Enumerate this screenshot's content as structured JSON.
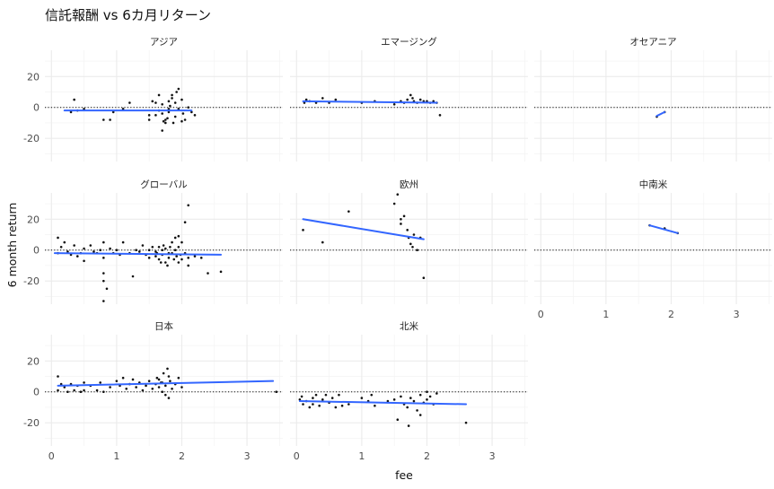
{
  "chart_data": {
    "type": "scatter",
    "title": "信託報酬 vs 6カ月リターン",
    "xlabel": "fee",
    "ylabel": "6 month return",
    "xlim": [
      -0.1,
      3.55
    ],
    "ylim": [
      -35,
      37
    ],
    "x_ticks": [
      0,
      1,
      2,
      3
    ],
    "y_ticks": [
      -20,
      0,
      20
    ],
    "grid": true,
    "reference_line": {
      "y": 0,
      "style": "dotted"
    },
    "trend": "linear fit per panel",
    "colors": {
      "points": "#111111",
      "trend": "#3366ff",
      "grid": "#ebebeb"
    },
    "panels": [
      {
        "name": "アジア",
        "trend": {
          "x0": 0.2,
          "y0": -2,
          "x1": 2.15,
          "y1": -2
        },
        "points": [
          [
            0.3,
            -3
          ],
          [
            0.35,
            5
          ],
          [
            0.4,
            -2
          ],
          [
            0.5,
            -1
          ],
          [
            0.8,
            -8
          ],
          [
            0.9,
            -8
          ],
          [
            0.95,
            -3
          ],
          [
            1.1,
            -1
          ],
          [
            1.2,
            3
          ],
          [
            1.5,
            -5
          ],
          [
            1.5,
            -8
          ],
          [
            1.55,
            4
          ],
          [
            1.6,
            -5
          ],
          [
            1.65,
            8
          ],
          [
            1.7,
            2
          ],
          [
            1.7,
            -15
          ],
          [
            1.72,
            -9
          ],
          [
            1.75,
            -10
          ],
          [
            1.78,
            -7
          ],
          [
            1.8,
            4
          ],
          [
            1.8,
            -3
          ],
          [
            1.82,
            1
          ],
          [
            1.85,
            6
          ],
          [
            1.85,
            8
          ],
          [
            1.87,
            -10
          ],
          [
            1.9,
            -6
          ],
          [
            1.92,
            10
          ],
          [
            1.95,
            -1
          ],
          [
            1.95,
            12
          ],
          [
            2.0,
            -9
          ],
          [
            2.0,
            5
          ],
          [
            2.02,
            -4
          ],
          [
            2.05,
            -8
          ],
          [
            2.1,
            0
          ],
          [
            2.15,
            -3
          ],
          [
            2.2,
            -5
          ],
          [
            1.6,
            3
          ],
          [
            1.65,
            -2
          ],
          [
            1.7,
            -4
          ],
          [
            1.75,
            -8
          ],
          [
            1.8,
            -1
          ],
          [
            1.9,
            3
          ]
        ]
      },
      {
        "name": "エマージング",
        "trend": {
          "x0": 0.1,
          "y0": 4,
          "x1": 2.15,
          "y1": 3
        },
        "points": [
          [
            0.12,
            3
          ],
          [
            0.15,
            5
          ],
          [
            0.2,
            4
          ],
          [
            0.3,
            3
          ],
          [
            0.4,
            6
          ],
          [
            0.5,
            3
          ],
          [
            0.6,
            5
          ],
          [
            1.0,
            3
          ],
          [
            1.2,
            4
          ],
          [
            1.5,
            2
          ],
          [
            1.6,
            4
          ],
          [
            1.65,
            3
          ],
          [
            1.7,
            5
          ],
          [
            1.75,
            8
          ],
          [
            1.8,
            4
          ],
          [
            1.85,
            3
          ],
          [
            1.9,
            5
          ],
          [
            1.95,
            4
          ],
          [
            2.0,
            4
          ],
          [
            2.05,
            3
          ],
          [
            2.1,
            4
          ],
          [
            2.2,
            -5
          ],
          [
            2.15,
            3
          ],
          [
            1.78,
            6
          ]
        ]
      },
      {
        "name": "オセアニア",
        "trend": {
          "x0": 1.78,
          "y0": -5.5,
          "x1": 1.9,
          "y1": -3
        },
        "points": [
          [
            1.78,
            -6
          ],
          [
            1.9,
            -3
          ]
        ]
      },
      {
        "name": "グローバル",
        "trend": {
          "x0": 0.05,
          "y0": -2,
          "x1": 2.6,
          "y1": -3
        },
        "points": [
          [
            0.1,
            -2
          ],
          [
            0.1,
            8
          ],
          [
            0.15,
            2
          ],
          [
            0.2,
            5
          ],
          [
            0.25,
            -1
          ],
          [
            0.3,
            -3
          ],
          [
            0.35,
            3
          ],
          [
            0.4,
            -4
          ],
          [
            0.45,
            -2
          ],
          [
            0.5,
            1
          ],
          [
            0.5,
            -7
          ],
          [
            0.6,
            3
          ],
          [
            0.65,
            -1
          ],
          [
            0.7,
            -2
          ],
          [
            0.75,
            0
          ],
          [
            0.8,
            5
          ],
          [
            0.8,
            -5
          ],
          [
            0.8,
            -15
          ],
          [
            0.8,
            -20
          ],
          [
            0.8,
            -33
          ],
          [
            0.85,
            -25
          ],
          [
            0.9,
            1
          ],
          [
            0.95,
            -2
          ],
          [
            1.0,
            0
          ],
          [
            1.05,
            -3
          ],
          [
            1.1,
            5
          ],
          [
            1.2,
            -2
          ],
          [
            1.25,
            -17
          ],
          [
            1.3,
            0
          ],
          [
            1.35,
            -1
          ],
          [
            1.4,
            3
          ],
          [
            1.45,
            -3
          ],
          [
            1.5,
            0
          ],
          [
            1.5,
            -5
          ],
          [
            1.55,
            2
          ],
          [
            1.6,
            -4
          ],
          [
            1.62,
            -2
          ],
          [
            1.65,
            -6
          ],
          [
            1.68,
            -8
          ],
          [
            1.7,
            0
          ],
          [
            1.72,
            3
          ],
          [
            1.75,
            -8
          ],
          [
            1.78,
            -10
          ],
          [
            1.8,
            -5
          ],
          [
            1.82,
            2
          ],
          [
            1.85,
            5
          ],
          [
            1.85,
            -2
          ],
          [
            1.88,
            -6
          ],
          [
            1.9,
            8
          ],
          [
            1.9,
            0
          ],
          [
            1.92,
            -4
          ],
          [
            1.95,
            -8
          ],
          [
            1.95,
            2
          ],
          [
            1.98,
            -3
          ],
          [
            2.0,
            -6
          ],
          [
            2.0,
            5
          ],
          [
            2.05,
            -2
          ],
          [
            2.1,
            -5
          ],
          [
            2.1,
            -10
          ],
          [
            2.2,
            -4
          ],
          [
            2.3,
            -5
          ],
          [
            2.4,
            -15
          ],
          [
            2.6,
            -14
          ],
          [
            2.1,
            29
          ],
          [
            2.05,
            18
          ],
          [
            1.95,
            9
          ],
          [
            1.7,
            -3
          ],
          [
            1.75,
            1
          ],
          [
            1.8,
            -2
          ],
          [
            1.6,
            -1
          ],
          [
            1.65,
            2
          ]
        ]
      },
      {
        "name": "欧州",
        "trend": {
          "x0": 0.1,
          "y0": 20,
          "x1": 1.95,
          "y1": 7
        },
        "points": [
          [
            0.1,
            13
          ],
          [
            0.4,
            5
          ],
          [
            0.8,
            25
          ],
          [
            1.5,
            30
          ],
          [
            1.55,
            36
          ],
          [
            1.6,
            20
          ],
          [
            1.65,
            22
          ],
          [
            1.7,
            13
          ],
          [
            1.72,
            8
          ],
          [
            1.75,
            4
          ],
          [
            1.78,
            2
          ],
          [
            1.8,
            10
          ],
          [
            1.85,
            0
          ],
          [
            1.9,
            8
          ],
          [
            1.95,
            -18
          ],
          [
            1.6,
            17
          ]
        ]
      },
      {
        "name": "中南米",
        "trend": {
          "x0": 1.67,
          "y0": 16,
          "x1": 2.1,
          "y1": 11
        },
        "points": [
          [
            1.67,
            16
          ],
          [
            1.9,
            14
          ],
          [
            2.1,
            11
          ]
        ]
      },
      {
        "name": "日本",
        "trend": {
          "x0": 0.1,
          "y0": 4,
          "x1": 3.4,
          "y1": 7
        },
        "points": [
          [
            0.1,
            10
          ],
          [
            0.1,
            1
          ],
          [
            0.15,
            5
          ],
          [
            0.2,
            3
          ],
          [
            0.25,
            0
          ],
          [
            0.3,
            5
          ],
          [
            0.35,
            1
          ],
          [
            0.4,
            4
          ],
          [
            0.45,
            0
          ],
          [
            0.5,
            6
          ],
          [
            0.5,
            1
          ],
          [
            0.6,
            4
          ],
          [
            0.7,
            1
          ],
          [
            0.75,
            6
          ],
          [
            0.8,
            0
          ],
          [
            0.9,
            3
          ],
          [
            1.0,
            7
          ],
          [
            1.05,
            4
          ],
          [
            1.1,
            9
          ],
          [
            1.15,
            2
          ],
          [
            1.2,
            5
          ],
          [
            1.25,
            8
          ],
          [
            1.3,
            3
          ],
          [
            1.35,
            6
          ],
          [
            1.4,
            1
          ],
          [
            1.45,
            4
          ],
          [
            1.5,
            7
          ],
          [
            1.55,
            2
          ],
          [
            1.6,
            5
          ],
          [
            1.62,
            9
          ],
          [
            1.65,
            3
          ],
          [
            1.68,
            6
          ],
          [
            1.7,
            0
          ],
          [
            1.72,
            12
          ],
          [
            1.75,
            4
          ],
          [
            1.78,
            15
          ],
          [
            1.8,
            -4
          ],
          [
            1.82,
            7
          ],
          [
            1.85,
            2
          ],
          [
            1.9,
            5
          ],
          [
            1.95,
            9
          ],
          [
            2.0,
            3
          ],
          [
            1.7,
            6
          ],
          [
            1.75,
            -2
          ],
          [
            1.8,
            10
          ],
          [
            1.65,
            8
          ],
          [
            3.45,
            0
          ]
        ]
      },
      {
        "name": "北米",
        "trend": {
          "x0": 0.05,
          "y0": -6,
          "x1": 2.6,
          "y1": -8
        },
        "points": [
          [
            0.05,
            -5
          ],
          [
            0.08,
            -3
          ],
          [
            0.1,
            -8
          ],
          [
            0.15,
            -6
          ],
          [
            0.2,
            -10
          ],
          [
            0.25,
            -4
          ],
          [
            0.3,
            -2
          ],
          [
            0.35,
            -9
          ],
          [
            0.4,
            -5
          ],
          [
            0.45,
            -2
          ],
          [
            0.5,
            -7
          ],
          [
            0.55,
            -4
          ],
          [
            0.6,
            -10
          ],
          [
            0.65,
            -2
          ],
          [
            0.7,
            -9
          ],
          [
            1.0,
            -4
          ],
          [
            1.1,
            -6
          ],
          [
            1.15,
            -2
          ],
          [
            1.2,
            -9
          ],
          [
            1.5,
            -5
          ],
          [
            1.55,
            -18
          ],
          [
            1.6,
            -3
          ],
          [
            1.65,
            -8
          ],
          [
            1.7,
            -10
          ],
          [
            1.75,
            -4
          ],
          [
            1.8,
            -6
          ],
          [
            1.85,
            -12
          ],
          [
            1.9,
            -2
          ],
          [
            1.95,
            -7
          ],
          [
            2.0,
            -5
          ],
          [
            2.05,
            -3
          ],
          [
            2.1,
            -8
          ],
          [
            2.15,
            -1
          ],
          [
            2.6,
            -20
          ],
          [
            0.25,
            -8
          ],
          [
            0.8,
            -8
          ],
          [
            1.72,
            -22
          ],
          [
            1.9,
            -15
          ],
          [
            2.0,
            0
          ],
          [
            1.4,
            -6
          ]
        ]
      }
    ]
  }
}
